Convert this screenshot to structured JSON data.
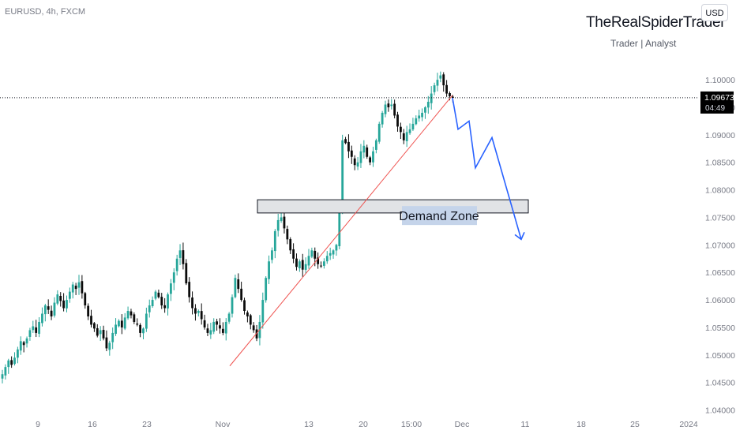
{
  "header": {
    "symbol": "EURUSD, 4h, FXCM",
    "brand_title": "TheRealSpiderTrader",
    "brand_subtitle": "Trader | Analyst",
    "currency_button": "USD"
  },
  "chart_data": {
    "type": "candlestick",
    "symbol": "EURUSD",
    "interval": "4h",
    "source": "FXCM",
    "ylim": [
      1.0385,
      1.1145
    ],
    "y_ticks": [
      "1.10000",
      "1.09500",
      "1.09000",
      "1.08500",
      "1.08000",
      "1.07500",
      "1.07000",
      "1.06500",
      "1.06000",
      "1.05500",
      "1.05000",
      "1.04500",
      "1.04000"
    ],
    "x_ticks": [
      "9",
      "16",
      "23",
      "Nov",
      "13",
      "20",
      "15:00",
      "Dec",
      "11",
      "18",
      "25",
      "2024"
    ],
    "current_price": {
      "value": "1.09673",
      "countdown": "04:49",
      "price": 1.09673
    },
    "series_close": [
      1.0465,
      1.0478,
      1.049,
      1.0482,
      1.0495,
      1.051,
      1.0525,
      1.0518,
      1.053,
      1.0545,
      1.0552,
      1.054,
      1.056,
      1.0575,
      1.059,
      1.0582,
      1.057,
      1.0595,
      1.061,
      1.0598,
      1.0585,
      1.06,
      1.0615,
      1.0628,
      1.062,
      1.0632,
      1.0612,
      1.059,
      1.057,
      1.0555,
      1.0548,
      1.0535,
      1.0545,
      1.053,
      1.0512,
      1.0522,
      1.054,
      1.0555,
      1.0562,
      1.055,
      1.0568,
      1.058,
      1.0572,
      1.056,
      1.0555,
      1.054,
      1.0548,
      1.0575,
      1.059,
      1.06,
      1.0615,
      1.0605,
      1.059,
      1.0585,
      1.061,
      1.063,
      1.065,
      1.0675,
      1.069,
      1.0665,
      1.063,
      1.0605,
      1.0585,
      1.0575,
      1.058,
      1.0565,
      1.055,
      1.054,
      1.0545,
      1.056,
      1.0555,
      1.0548,
      1.054,
      1.056,
      1.0575,
      1.0605,
      1.064,
      1.062,
      1.06,
      1.058,
      1.057,
      1.0555,
      1.0545,
      1.053,
      1.056,
      1.06,
      1.064,
      1.067,
      1.069,
      1.0725,
      1.0745,
      1.075,
      1.073,
      1.071,
      1.069,
      1.0675,
      1.066,
      1.067,
      1.0655,
      1.0665,
      1.068,
      1.069,
      1.0675,
      1.0665,
      1.0662,
      1.067,
      1.068,
      1.0685,
      1.069,
      1.07,
      1.077,
      1.089,
      1.0885,
      1.087,
      1.086,
      1.0845,
      1.085,
      1.087,
      1.088,
      1.086,
      1.085,
      1.087,
      1.089,
      1.092,
      1.094,
      1.0955,
      1.095,
      1.0955,
      1.0935,
      1.0915,
      1.0905,
      1.089,
      1.0905,
      1.091,
      1.092,
      1.093,
      1.0935,
      1.094,
      1.095,
      1.096,
      1.0975,
      1.099,
      1.1,
      1.1008,
      1.099,
      1.0975,
      1.097,
      1.0967
    ],
    "demand_zone": {
      "label": "Demand Zone",
      "price_top": 1.0782,
      "price_bottom": 1.0758
    },
    "trendline": {
      "from": {
        "bar": 38.5,
        "price": 1.048
      },
      "to": {
        "bar": 146,
        "price": 1.0972
      }
    },
    "projection": {
      "points": [
        [
          1.0967,
          0
        ],
        [
          1.091,
          1
        ],
        [
          1.0925,
          2
        ],
        [
          1.084,
          3
        ],
        [
          1.0895,
          4
        ],
        [
          1.071,
          5
        ]
      ],
      "color": "#2962ff"
    },
    "colors": {
      "bull": "#26a69a",
      "bear": "#0b0b0b",
      "trendline": "#ef5350",
      "zone_fill": "#e1e3e6",
      "zone_border": "#131722",
      "label_bg": "#c5d4ea",
      "grid_text": "#787b86",
      "price_tag_bg": "#000000"
    }
  }
}
